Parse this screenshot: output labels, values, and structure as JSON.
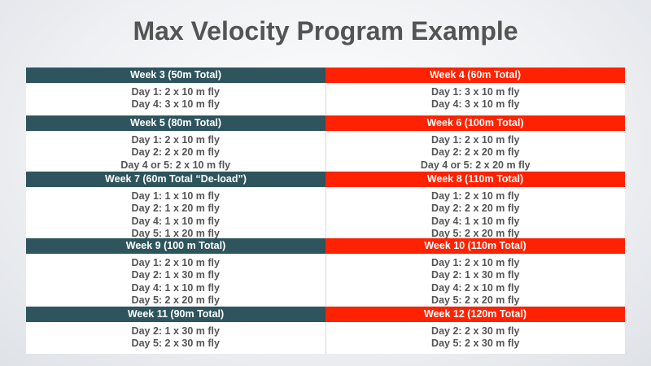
{
  "title": "Max Velocity Program Example",
  "colors": {
    "left_header": "#2e555d",
    "right_header": "#ff2200"
  },
  "rows": [
    {
      "left": {
        "header": "Week 3 (50m Total)",
        "days": [
          "Day 1: 2 x 10 m fly",
          "Day 4: 3 x 10 m fly"
        ]
      },
      "right": {
        "header": "Week 4 (60m Total)",
        "days": [
          "Day 1: 3 x 10 m fly",
          "Day 4: 3 x 10 m fly"
        ]
      }
    },
    {
      "left": {
        "header": "Week 5 (80m Total)",
        "days": [
          "Day 1: 2 x 10 m fly",
          "Day 2: 2 x 20 m fly",
          "Day 4 or 5: 2 x 10 m fly"
        ]
      },
      "right": {
        "header": "Week 6 (100m Total)",
        "days": [
          "Day 1: 2 x 10 m fly",
          "Day 2: 2 x 20 m fly",
          "Day 4 or 5: 2 x 20 m fly"
        ]
      }
    },
    {
      "left": {
        "header": "Week 7 (60m Total “De-load”)",
        "days": [
          "Day 1: 1 x 10 m fly",
          "Day 2: 1 x 20 m fly",
          "Day 4: 1 x 10 m fly",
          "Day 5: 1 x 20 m fly"
        ]
      },
      "right": {
        "header": "Week 8 (110m Total)",
        "days": [
          "Day 1: 2 x 10 m fly",
          "Day 2: 2 x 20 m fly",
          "Day 4: 1 x 10 m fly",
          "Day 5: 2 x 20 m fly"
        ]
      }
    },
    {
      "left": {
        "header": "Week 9 (100 m Total)",
        "days": [
          "Day 1: 2 x 10 m fly",
          "Day 2: 1 x 30 m fly",
          "Day 4: 1 x 10 m fly",
          "Day 5: 2 x 20 m fly"
        ]
      },
      "right": {
        "header": "Week 10 (110m Total)",
        "days": [
          "Day 1: 2 x 10 m fly",
          "Day 2: 1 x 30 m fly",
          "Day 4: 2 x 10 m fly",
          "Day 5: 2 x 20 m fly"
        ]
      }
    },
    {
      "left": {
        "header": "Week 11 (90m Total)",
        "days": [
          "Day 2: 1 x 30 m fly",
          "Day 5: 2 x 30 m fly"
        ]
      },
      "right": {
        "header": "Week 12 (120m Total)",
        "days": [
          "Day 2: 2 x 30 m fly",
          "Day 5: 2 x 30 m fly"
        ]
      }
    }
  ]
}
